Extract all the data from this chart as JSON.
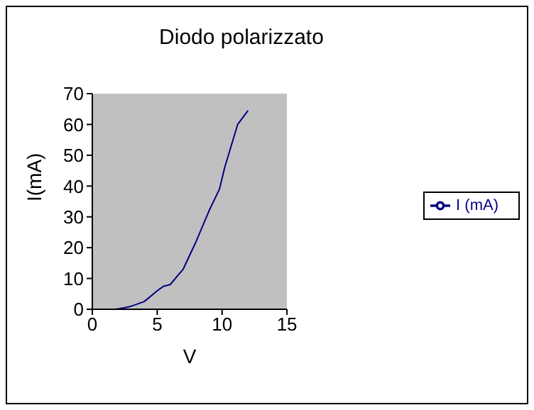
{
  "chart_data": {
    "type": "line",
    "title": "Diodo polarizzato",
    "xlabel": "V",
    "ylabel": "I(mA)",
    "series": [
      {
        "name": "I (mA)",
        "color": "#000080",
        "x": [
          1.8,
          2.5,
          3,
          4,
          5,
          5.5,
          6,
          7,
          8,
          9,
          9.8,
          10.2,
          11.2,
          12
        ],
        "values": [
          0,
          0.5,
          1,
          2.5,
          6,
          7.5,
          8,
          13,
          22,
          32,
          39,
          46,
          60,
          64.5
        ]
      }
    ],
    "xlim": [
      0,
      15
    ],
    "xticks": [
      0,
      5,
      10,
      15
    ],
    "ylim": [
      0,
      70
    ],
    "yticks": [
      0,
      10,
      20,
      30,
      40,
      50,
      60,
      70
    ],
    "grid": false,
    "legend": "right",
    "marker": "none",
    "line_style": "solid"
  }
}
